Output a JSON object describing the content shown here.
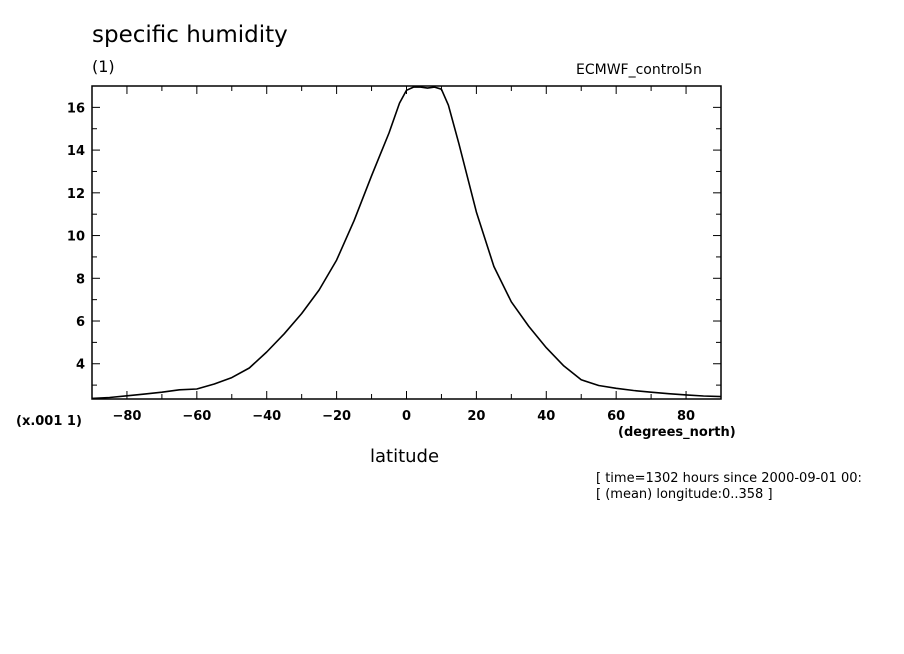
{
  "header": {
    "title": "specific humidity",
    "units": "(1)",
    "dataset": "ECMWF_control5n"
  },
  "axes": {
    "y_scale_note": "(x.001 1)",
    "x_units": "(degrees_north)",
    "x_label": "latitude"
  },
  "info": {
    "line1": "[ time=1302 hours since 2000-09-01 00:",
    "line2": "[ (mean) longitude:0..358 ]"
  },
  "chart_data": {
    "type": "line",
    "title": "specific humidity",
    "xlabel": "latitude",
    "ylabel": "",
    "xlim": [
      -90,
      90
    ],
    "ylim": [
      2.35,
      17
    ],
    "x_ticks": [
      -80,
      -60,
      -40,
      -20,
      0,
      20,
      40,
      60,
      80
    ],
    "y_ticks": [
      4,
      6,
      8,
      10,
      12,
      14,
      16
    ],
    "grid": false,
    "series": [
      {
        "x": [
          -90,
          -85,
          -80,
          -75,
          -70,
          -65,
          -60,
          -55,
          -50,
          -45,
          -40,
          -35,
          -30,
          -25,
          -20,
          -15,
          -10,
          -5,
          -2,
          0,
          2,
          4,
          6,
          8,
          10,
          12,
          15,
          20,
          25,
          30,
          35,
          40,
          45,
          50,
          55,
          60,
          65,
          70,
          75,
          80,
          85,
          90
        ],
        "y": [
          2.38,
          2.42,
          2.5,
          2.58,
          2.67,
          2.78,
          2.82,
          3.05,
          3.35,
          3.8,
          4.55,
          5.4,
          6.35,
          7.45,
          8.85,
          10.7,
          12.8,
          14.8,
          16.2,
          16.8,
          16.95,
          16.95,
          16.9,
          16.95,
          16.85,
          16.1,
          14.3,
          11.1,
          8.55,
          6.9,
          5.75,
          4.75,
          3.9,
          3.25,
          2.98,
          2.85,
          2.75,
          2.67,
          2.6,
          2.54,
          2.49,
          2.46
        ]
      }
    ]
  }
}
